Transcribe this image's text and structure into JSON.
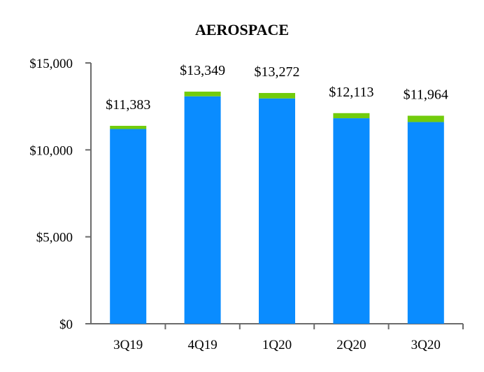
{
  "chart_data": {
    "type": "bar",
    "stacked": true,
    "title": "AEROSPACE",
    "xlabel": "",
    "ylabel": "",
    "categories": [
      "3Q19",
      "4Q19",
      "1Q20",
      "2Q20",
      "3Q20"
    ],
    "series": [
      {
        "color": "#0a8cff",
        "values": [
          11200,
          13080,
          12960,
          11820,
          11600
        ]
      },
      {
        "color": "#72cc0c",
        "values": [
          183,
          269,
          312,
          293,
          364
        ]
      }
    ],
    "totals": [
      11383,
      13349,
      13272,
      12113,
      11964
    ],
    "total_labels": [
      "$11,383",
      "$13,349",
      "$13,272",
      "$12,113",
      "$11,964"
    ],
    "ylim": [
      0,
      15000
    ],
    "yticks": [
      0,
      5000,
      10000,
      15000
    ],
    "ytick_labels": [
      "$0",
      "$5,000",
      "$10,000",
      "$15,000"
    ],
    "grid": false,
    "legend": "none"
  }
}
